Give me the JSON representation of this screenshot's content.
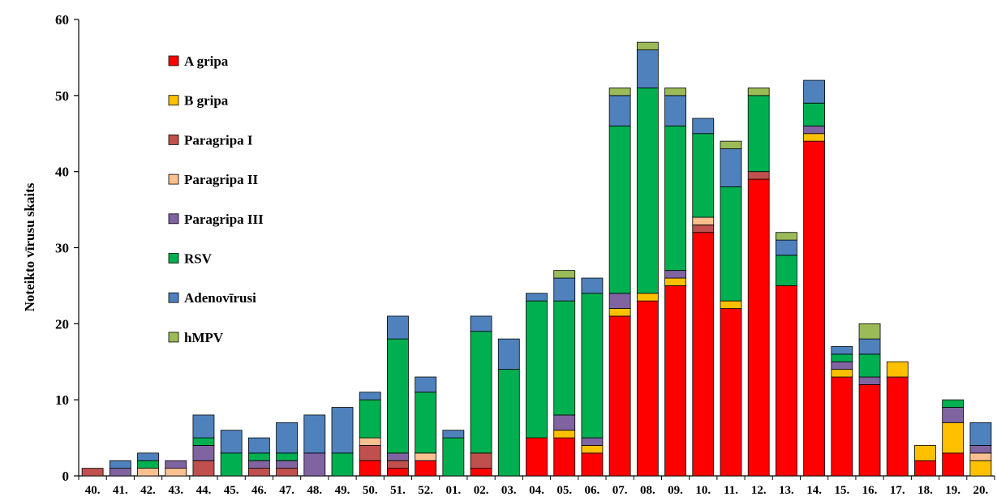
{
  "chart_data": {
    "type": "bar",
    "stacked": true,
    "title": "",
    "xlabel": "",
    "ylabel": "Noteikto vīrusu skaits",
    "ylim": [
      0,
      60
    ],
    "yticks": [
      0,
      10,
      20,
      30,
      40,
      50,
      60
    ],
    "grid": false,
    "legend_position": "top-left",
    "categories": [
      "40.",
      "41.",
      "42.",
      "43.",
      "44.",
      "45.",
      "46.",
      "47.",
      "48.",
      "49.",
      "50.",
      "51.",
      "52.",
      "01.",
      "02.",
      "03.",
      "04.",
      "05.",
      "06.",
      "07.",
      "08.",
      "09.",
      "10.",
      "11.",
      "12.",
      "13.",
      "14.",
      "15.",
      "16.",
      "17.",
      "18.",
      "19.",
      "20."
    ],
    "series": [
      {
        "name": "A gripa",
        "color": "#ff0000",
        "values": [
          0,
          0,
          0,
          0,
          0,
          0,
          0,
          0,
          0,
          0,
          2,
          1,
          2,
          0,
          1,
          0,
          5,
          5,
          3,
          21,
          23,
          25,
          32,
          22,
          39,
          25,
          44,
          13,
          12,
          13,
          2,
          3,
          0
        ]
      },
      {
        "name": "B gripa",
        "color": "#ffc000",
        "values": [
          0,
          0,
          0,
          0,
          0,
          0,
          0,
          0,
          0,
          0,
          0,
          0,
          0,
          0,
          0,
          0,
          0,
          1,
          1,
          1,
          1,
          1,
          0,
          1,
          0,
          0,
          1,
          1,
          0,
          2,
          2,
          4,
          2
        ]
      },
      {
        "name": "Paragripa I",
        "color": "#c0504d",
        "values": [
          1,
          0,
          0,
          0,
          2,
          0,
          1,
          1,
          0,
          0,
          2,
          1,
          0,
          0,
          2,
          0,
          0,
          0,
          0,
          0,
          0,
          0,
          1,
          0,
          1,
          0,
          0,
          0,
          0,
          0,
          0,
          0,
          0
        ]
      },
      {
        "name": "Paragripa II",
        "color": "#fac090",
        "values": [
          0,
          0,
          1,
          1,
          0,
          0,
          0,
          0,
          0,
          0,
          1,
          0,
          1,
          0,
          0,
          0,
          0,
          0,
          0,
          0,
          0,
          0,
          1,
          0,
          0,
          0,
          0,
          0,
          0,
          0,
          0,
          0,
          1
        ]
      },
      {
        "name": "Paragripa III",
        "color": "#8064a2",
        "values": [
          0,
          1,
          0,
          1,
          2,
          0,
          1,
          1,
          3,
          0,
          0,
          1,
          0,
          0,
          0,
          0,
          0,
          2,
          1,
          2,
          0,
          1,
          0,
          0,
          0,
          0,
          1,
          1,
          1,
          0,
          0,
          2,
          1
        ]
      },
      {
        "name": "RSV",
        "color": "#00b050",
        "values": [
          0,
          0,
          1,
          0,
          1,
          3,
          1,
          1,
          0,
          3,
          5,
          15,
          8,
          5,
          16,
          14,
          18,
          15,
          19,
          22,
          27,
          19,
          11,
          15,
          10,
          4,
          3,
          1,
          3,
          0,
          0,
          1,
          0
        ]
      },
      {
        "name": "Adenovīrusi",
        "color": "#4f81bd",
        "values": [
          0,
          1,
          1,
          0,
          3,
          3,
          2,
          4,
          5,
          6,
          1,
          3,
          2,
          1,
          2,
          4,
          1,
          3,
          2,
          4,
          5,
          4,
          2,
          5,
          0,
          2,
          3,
          1,
          2,
          0,
          0,
          0,
          3
        ]
      },
      {
        "name": "hMPV",
        "color": "#9bbb59",
        "values": [
          0,
          0,
          0,
          0,
          0,
          0,
          0,
          0,
          0,
          0,
          0,
          0,
          0,
          0,
          0,
          0,
          0,
          1,
          0,
          1,
          1,
          1,
          0,
          1,
          1,
          1,
          0,
          0,
          2,
          0,
          0,
          0,
          0
        ]
      }
    ]
  }
}
